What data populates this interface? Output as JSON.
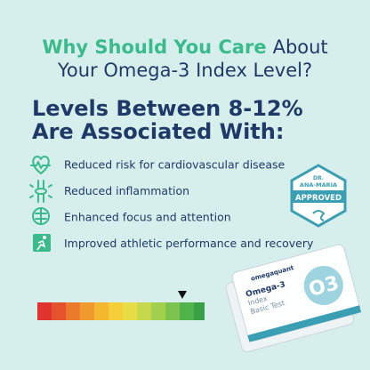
{
  "heading": {
    "highlight": "Why Should You Care",
    "rest": "About",
    "line2": "Your Omega-3 Index Level?"
  },
  "subheading": {
    "line1": "Levels Between 8-12%",
    "line2": "Are Associated With:"
  },
  "benefits": [
    "Reduced risk for cardiovascular disease",
    "Reduced inflammation",
    "Enhanced focus and attention",
    "Improved athletic performance and recovery"
  ],
  "badge": {
    "line1": "DR.",
    "line2": "ANA-MARIA",
    "line3": "APPROVED"
  },
  "product": {
    "brand": "omegaquant",
    "name1": "Omega-3",
    "name2": "Index",
    "name3": "Basic Test",
    "logo": "O3"
  }
}
